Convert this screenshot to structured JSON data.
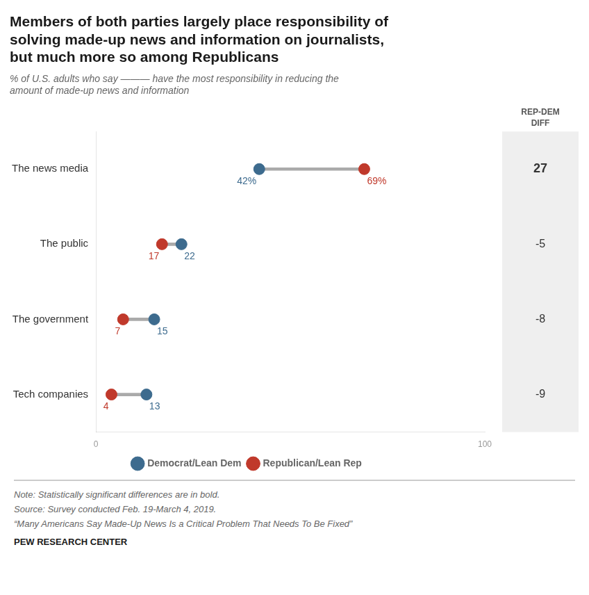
{
  "chart_data": {
    "type": "dumbbell",
    "title": [
      "Members of both parties largely place responsibility of",
      "solving made-up news and information on journalists,",
      "but much more so among Republicans"
    ],
    "subtitle": [
      "% of U.S. adults who say ——— have the most responsibility in reducing the",
      "amount of made-up news and information"
    ],
    "orientation": "horizontal",
    "categories": [
      "The news media",
      "The public",
      "The government",
      "Tech companies"
    ],
    "series": [
      {
        "name": "Democrat/Lean Dem",
        "color": "#3d6b8e",
        "values": [
          42,
          22,
          15,
          13
        ],
        "value_labels": [
          "42%",
          "22",
          "15",
          "13"
        ]
      },
      {
        "name": "Republican/Lean Rep",
        "color": "#c0392b",
        "values": [
          69,
          17,
          7,
          4
        ],
        "value_labels": [
          "69%",
          "17",
          "7",
          "4"
        ]
      }
    ],
    "data_labels": true,
    "xlim": [
      0,
      100
    ],
    "xticks": [
      0,
      100
    ],
    "grid": false,
    "legend": "bottom",
    "diff_label": [
      "REP-DEM",
      "DIFF"
    ],
    "diff_values": [
      27,
      -5,
      -8,
      -9
    ],
    "diff_bold": [
      true,
      false,
      false,
      false
    ],
    "notes": [
      "Note: Statistically significant differences are in bold.",
      "Source: Survey conducted Feb. 19-March 4, 2019.",
      "“Many Americans Say Made-Up News Is a Critical Problem That Needs To Be Fixed”"
    ],
    "source": "PEW RESEARCH CENTER"
  }
}
